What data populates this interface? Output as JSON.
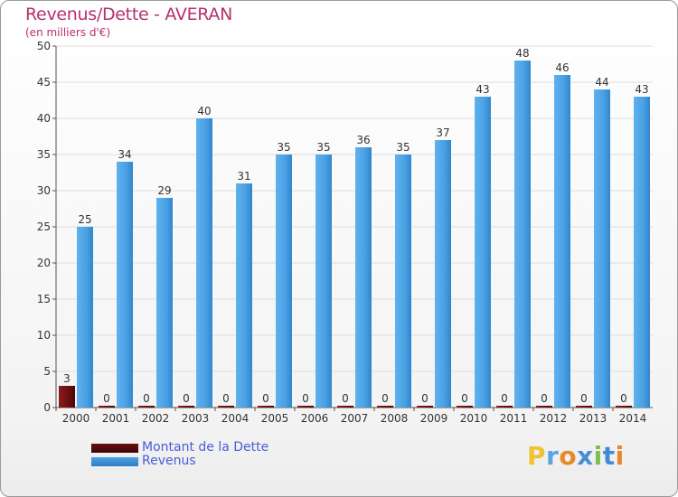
{
  "title": "Revenus/Dette - AVERAN",
  "subtitle": "(en milliers d'€)",
  "legend": [
    {
      "label": "Montant de la Dette",
      "color": "#6d0f0f"
    },
    {
      "label": "Revenus",
      "color": "#4da3e6"
    }
  ],
  "logo": {
    "letters": [
      "P",
      "r",
      "o",
      "x",
      "i",
      "t",
      "i"
    ],
    "colors": [
      "#f1c232",
      "#5aa4df",
      "#e8882b",
      "#4a8dd6",
      "#78c24a",
      "#3f8ad1",
      "#e8882b"
    ]
  },
  "colors": {
    "dette": "#6d0f0f",
    "revenus": "#4da3e6",
    "title": "#b8306f",
    "axis_text": "#333333",
    "grid": "#dddddd"
  },
  "chart_data": {
    "type": "bar",
    "title": "Revenus/Dette - AVERAN",
    "ylabel": "(en milliers d'€)",
    "xlabel": "",
    "ylim": [
      0,
      50
    ],
    "yticks": [
      0,
      5,
      10,
      15,
      20,
      25,
      30,
      35,
      40,
      45,
      50
    ],
    "grid": true,
    "legend_position": "bottom-left",
    "categories": [
      "2000",
      "2001",
      "2002",
      "2003",
      "2004",
      "2005",
      "2006",
      "2007",
      "2008",
      "2009",
      "2010",
      "2011",
      "2012",
      "2013",
      "2014"
    ],
    "series": [
      {
        "name": "Montant de la Dette",
        "values": [
          3,
          0,
          0,
          0,
          0,
          0,
          0,
          0,
          0,
          0,
          0,
          0,
          0,
          0,
          0
        ]
      },
      {
        "name": "Revenus",
        "values": [
          25,
          34,
          29,
          40,
          31,
          35,
          35,
          36,
          35,
          37,
          43,
          48,
          46,
          44,
          43
        ]
      }
    ]
  }
}
